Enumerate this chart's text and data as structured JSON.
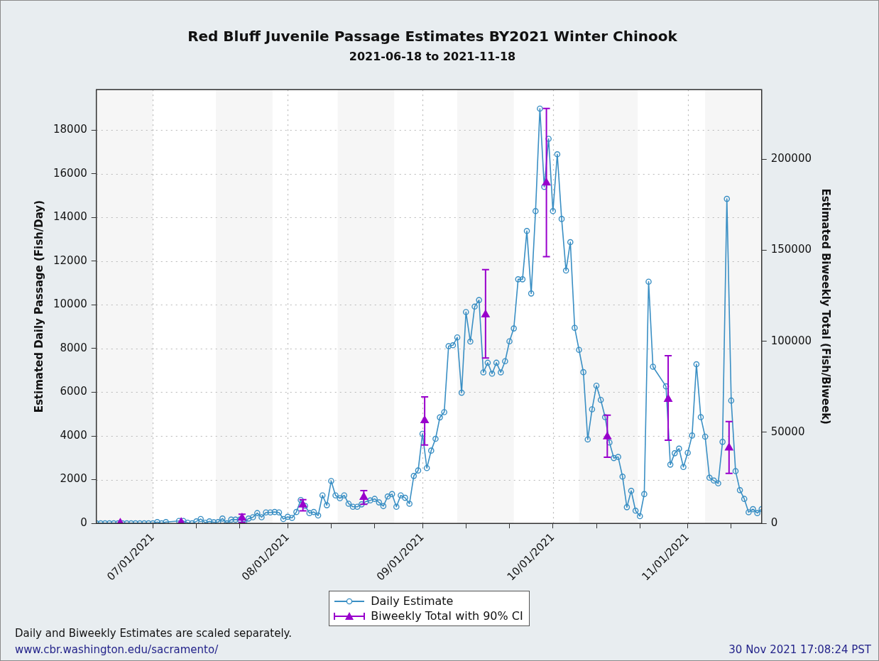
{
  "chart_data": {
    "type": "line",
    "title": "Red Bluff Juvenile Passage Estimates BY2021 Winter Chinook",
    "subtitle": "2021-06-18 to 2021-11-18",
    "ylabel": "Estimated Daily Passage (Fish/Day)",
    "y2label": "Estimated Biweekly Total (Fish/Biweek)",
    "xlim": [
      "2021-06-18",
      "2021-11-18"
    ],
    "xticks": [
      {
        "value": "2021-07-01",
        "label": "07/01/2021"
      },
      {
        "value": "2021-07-11",
        "label": null
      },
      {
        "value": "2021-07-21",
        "label": null
      },
      {
        "value": "2021-08-01",
        "label": "08/01/2021"
      },
      {
        "value": "2021-08-11",
        "label": null
      },
      {
        "value": "2021-08-21",
        "label": null
      },
      {
        "value": "2021-09-01",
        "label": "09/01/2021"
      },
      {
        "value": "2021-09-11",
        "label": null
      },
      {
        "value": "2021-09-21",
        "label": null
      },
      {
        "value": "2021-10-01",
        "label": "10/01/2021"
      },
      {
        "value": "2021-10-11",
        "label": null
      },
      {
        "value": "2021-10-21",
        "label": null
      },
      {
        "value": "2021-11-01",
        "label": "11/01/2021"
      },
      {
        "value": "2021-11-11",
        "label": null
      }
    ],
    "ylim": [
      0,
      19850
    ],
    "yticks": [
      0,
      2000,
      4000,
      6000,
      8000,
      10000,
      12000,
      14000,
      16000,
      18000
    ],
    "y2lim": [
      0,
      238200
    ],
    "y2ticks": [
      0,
      50000,
      100000,
      150000,
      200000
    ],
    "grid": true,
    "legend": "bottom",
    "bands": [
      {
        "axis": "x",
        "from": "2021-06-18",
        "to": "2021-07-01",
        "color": "#f6f6f6"
      },
      {
        "axis": "x",
        "from": "2021-07-15T12:00",
        "to": "2021-07-28T12:00",
        "color": "#f6f6f6"
      },
      {
        "axis": "x",
        "from": "2021-08-12T12:00",
        "to": "2021-08-25T12:00",
        "color": "#f6f6f6"
      },
      {
        "axis": "x",
        "from": "2021-09-09",
        "to": "2021-09-22",
        "color": "#f6f6f6"
      },
      {
        "axis": "x",
        "from": "2021-10-07",
        "to": "2021-10-20T12:00",
        "color": "#f6f6f6"
      },
      {
        "axis": "x",
        "from": "2021-11-05",
        "to": "2021-11-18",
        "color": "#f6f6f6"
      }
    ],
    "series": [
      {
        "name": "Daily Estimate",
        "type": "line",
        "marker": "circle",
        "color": "#3a8fc4",
        "x": [
          "2021-06-18",
          "2021-06-19",
          "2021-06-20",
          "2021-06-21",
          "2021-06-22",
          "2021-06-23",
          "2021-06-24",
          "2021-06-25",
          "2021-06-26",
          "2021-06-27",
          "2021-06-28",
          "2021-06-29",
          "2021-06-30",
          "2021-07-01",
          "2021-07-02",
          "2021-07-03",
          "2021-07-04",
          "2021-07-07",
          "2021-07-08",
          "2021-07-09",
          "2021-07-10",
          "2021-07-11",
          "2021-07-12",
          "2021-07-13",
          "2021-07-14",
          "2021-07-15",
          "2021-07-16",
          "2021-07-17",
          "2021-07-18",
          "2021-07-19",
          "2021-07-20",
          "2021-07-21",
          "2021-07-22",
          "2021-07-23",
          "2021-07-24",
          "2021-07-25",
          "2021-07-26",
          "2021-07-27",
          "2021-07-28",
          "2021-07-29",
          "2021-07-30",
          "2021-07-31",
          "2021-08-01",
          "2021-08-02",
          "2021-08-03",
          "2021-08-04",
          "2021-08-05",
          "2021-08-06",
          "2021-08-07",
          "2021-08-08",
          "2021-08-09",
          "2021-08-10",
          "2021-08-11",
          "2021-08-12",
          "2021-08-13",
          "2021-08-14",
          "2021-08-15",
          "2021-08-16",
          "2021-08-17",
          "2021-08-18",
          "2021-08-19",
          "2021-08-20",
          "2021-08-21",
          "2021-08-22",
          "2021-08-23",
          "2021-08-24",
          "2021-08-25",
          "2021-08-26",
          "2021-08-27",
          "2021-08-28",
          "2021-08-29",
          "2021-08-30",
          "2021-08-31",
          "2021-09-01",
          "2021-09-02",
          "2021-09-03",
          "2021-09-04",
          "2021-09-05",
          "2021-09-06",
          "2021-09-07",
          "2021-09-08",
          "2021-09-09",
          "2021-09-10",
          "2021-09-11",
          "2021-09-12",
          "2021-09-13",
          "2021-09-14",
          "2021-09-15",
          "2021-09-16",
          "2021-09-17",
          "2021-09-18",
          "2021-09-19",
          "2021-09-20",
          "2021-09-21",
          "2021-09-22",
          "2021-09-23",
          "2021-09-24",
          "2021-09-25",
          "2021-09-26",
          "2021-09-27",
          "2021-09-28",
          "2021-09-29",
          "2021-09-30",
          "2021-10-01",
          "2021-10-02",
          "2021-10-03",
          "2021-10-04",
          "2021-10-05",
          "2021-10-06",
          "2021-10-07",
          "2021-10-08",
          "2021-10-09",
          "2021-10-10",
          "2021-10-11",
          "2021-10-12",
          "2021-10-13",
          "2021-10-14",
          "2021-10-15",
          "2021-10-16",
          "2021-10-17",
          "2021-10-18",
          "2021-10-19",
          "2021-10-20",
          "2021-10-21",
          "2021-10-22",
          "2021-10-23",
          "2021-10-24",
          "2021-10-27",
          "2021-10-28",
          "2021-10-29",
          "2021-10-30",
          "2021-10-31",
          "2021-11-01",
          "2021-11-02",
          "2021-11-03",
          "2021-11-04",
          "2021-11-05",
          "2021-11-06",
          "2021-11-07",
          "2021-11-08",
          "2021-11-09",
          "2021-11-10",
          "2021-11-11",
          "2021-11-12",
          "2021-11-13",
          "2021-11-14",
          "2021-11-15",
          "2021-11-16",
          "2021-11-17",
          "2021-11-18"
        ],
        "values": [
          0,
          0,
          0,
          0,
          0,
          0,
          0,
          0,
          0,
          0,
          0,
          0,
          0,
          0,
          60,
          0,
          60,
          110,
          110,
          30,
          0,
          90,
          200,
          30,
          90,
          50,
          60,
          220,
          0,
          170,
          170,
          170,
          60,
          220,
          280,
          470,
          280,
          500,
          500,
          520,
          500,
          200,
          300,
          250,
          520,
          1070,
          800,
          470,
          520,
          360,
          1280,
          830,
          1940,
          1280,
          1150,
          1280,
          900,
          760,
          760,
          870,
          1000,
          1050,
          1120,
          960,
          790,
          1230,
          1340,
          760,
          1280,
          1170,
          900,
          2170,
          2420,
          4100,
          2530,
          3330,
          3870,
          4850,
          5090,
          8110,
          8150,
          8510,
          5980,
          9670,
          8320,
          9920,
          10220,
          6910,
          7350,
          6850,
          7350,
          6910,
          7420,
          8330,
          8920,
          11170,
          11170,
          13380,
          10520,
          14290,
          18980,
          15400,
          17600,
          14290,
          16890,
          13930,
          11570,
          12870,
          8950,
          7940,
          6920,
          3840,
          5220,
          6300,
          5650,
          4860,
          3700,
          2990,
          3040,
          2140,
          740,
          1490,
          580,
          330,
          1340,
          11060,
          7170,
          6270,
          2690,
          3210,
          3420,
          2580,
          3230,
          4020,
          7280,
          4860,
          3970,
          2090,
          1960,
          1830,
          3730,
          14850,
          5620,
          2390,
          1520,
          1120,
          510,
          650,
          470,
          650
        ]
      },
      {
        "name": "Biweekly Total with 90% CI",
        "type": "scatter",
        "marker": "triangle",
        "color": "#9900cc",
        "axis": "y2",
        "x": [
          "2021-06-23T12:00",
          "2021-07-07T12:00",
          "2021-07-21T12:00",
          "2021-08-04T12:00",
          "2021-08-18T12:00",
          "2021-09-01T12:00",
          "2021-09-15T12:00",
          "2021-09-29T12:00",
          "2021-10-13T12:00",
          "2021-10-27T12:00",
          "2021-11-10T12:00"
        ],
        "values": [
          200,
          600,
          3000,
          10200,
          14400,
          56500,
          114600,
          187000,
          47600,
          68200,
          41500
        ],
        "errors": [
          null,
          null,
          [
            400,
            5000
          ],
          [
            6900,
            13000
          ],
          [
            10500,
            18000
          ],
          [
            43000,
            69500
          ],
          [
            90800,
            139300
          ],
          [
            146500,
            227800
          ],
          [
            36300,
            59400
          ],
          [
            45700,
            92100
          ],
          [
            27400,
            55900
          ]
        ]
      }
    ],
    "annotations": [
      "Daily and Biweekly Estimates are scaled separately.",
      "www.cbr.washington.edu/sacramento/",
      "30 Nov 2021 17:08:24 PST"
    ]
  }
}
